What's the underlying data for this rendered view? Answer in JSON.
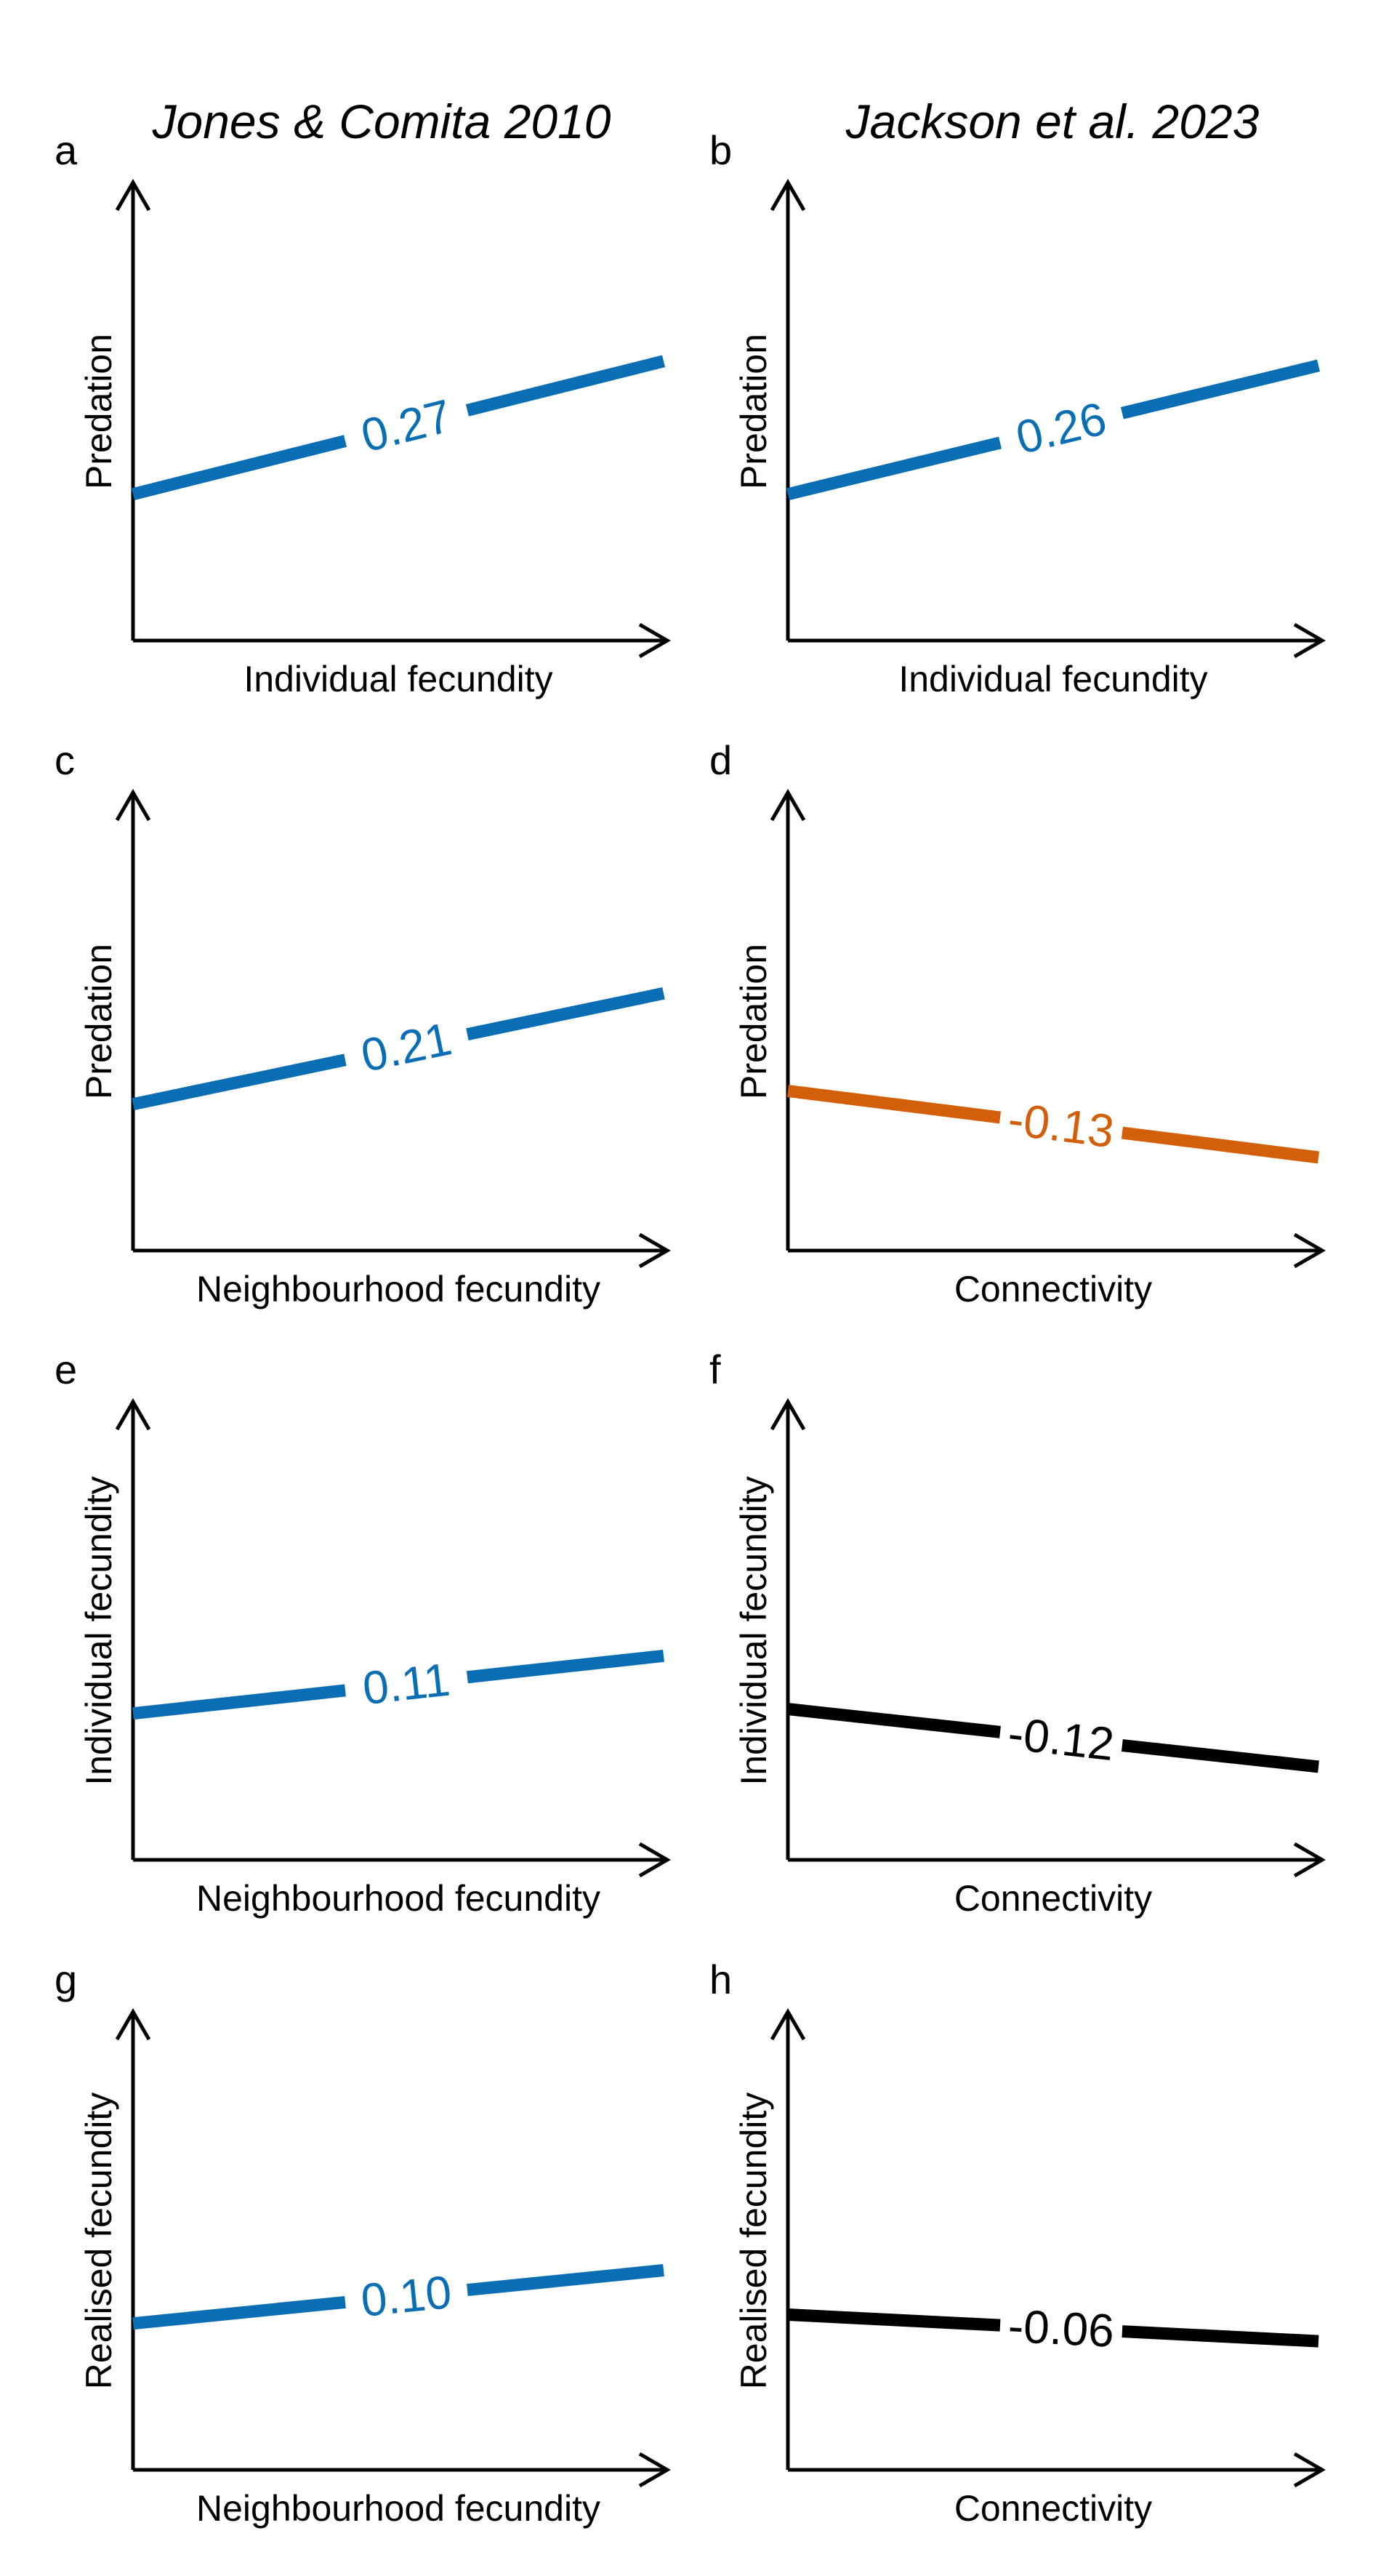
{
  "figure": {
    "column_titles": [
      "Jones & Comita 2010",
      "Jackson et al. 2023"
    ]
  },
  "colors": {
    "positive": "#0a6eb4",
    "negative_significant": "#d45f0a",
    "negative": "#000000",
    "axis": "#000000"
  },
  "chart_data": [
    {
      "panel": "a",
      "type": "line",
      "xlabel": "Individual fecundity",
      "ylabel": "Predation",
      "slope_label": "0.27",
      "color": "positive",
      "y_start": 0.33,
      "y_end": 0.63
    },
    {
      "panel": "b",
      "type": "line",
      "xlabel": "Individual fecundity",
      "ylabel": "Predation",
      "slope_label": "0.26",
      "color": "positive",
      "y_start": 0.33,
      "y_end": 0.62
    },
    {
      "panel": "c",
      "type": "line",
      "xlabel": "Neighbourhood fecundity",
      "ylabel": "Predation",
      "slope_label": "0.21",
      "color": "positive",
      "y_start": 0.33,
      "y_end": 0.58
    },
    {
      "panel": "d",
      "type": "line",
      "xlabel": "Connectivity",
      "ylabel": "Predation",
      "slope_label": "-0.13",
      "color": "negative_significant",
      "y_start": 0.36,
      "y_end": 0.21
    },
    {
      "panel": "e",
      "type": "line",
      "xlabel": "Neighbourhood fecundity",
      "ylabel": "Individual fecundity",
      "slope_label": "0.11",
      "color": "positive",
      "y_start": 0.33,
      "y_end": 0.46
    },
    {
      "panel": "f",
      "type": "line",
      "xlabel": "Connectivity",
      "ylabel": "Individual fecundity",
      "slope_label": "-0.12",
      "color": "negative",
      "y_start": 0.34,
      "y_end": 0.21
    },
    {
      "panel": "g",
      "type": "line",
      "xlabel": "Neighbourhood fecundity",
      "ylabel": "Realised fecundity",
      "slope_label": "0.10",
      "color": "positive",
      "y_start": 0.33,
      "y_end": 0.45
    },
    {
      "panel": "h",
      "type": "line",
      "xlabel": "Connectivity",
      "ylabel": "Realised fecundity",
      "slope_label": "-0.06",
      "color": "negative",
      "y_start": 0.35,
      "y_end": 0.29
    }
  ]
}
